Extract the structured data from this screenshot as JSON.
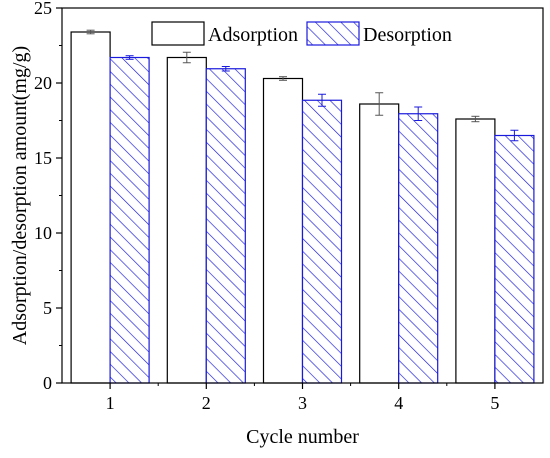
{
  "chart_data": {
    "type": "bar",
    "title": "",
    "xlabel": "Cycle number",
    "ylabel": "Adsorption/desorption amount(mg/g)",
    "categories": [
      "1",
      "2",
      "3",
      "4",
      "5"
    ],
    "ylim": [
      0,
      25
    ],
    "yticks": [
      "0",
      "5",
      "10",
      "15",
      "20",
      "25"
    ],
    "grid": false,
    "legend_position": "top",
    "series": [
      {
        "name": "Adsorption",
        "values": [
          23.4,
          21.7,
          20.3,
          18.6,
          17.6
        ],
        "errors": [
          0.12,
          0.35,
          0.12,
          0.75,
          0.18
        ],
        "fill": "#ffffff",
        "stroke": "#000000",
        "pattern": "none"
      },
      {
        "name": "Desorption",
        "values": [
          21.7,
          20.95,
          18.85,
          17.95,
          16.5
        ],
        "errors": [
          0.12,
          0.15,
          0.4,
          0.45,
          0.35
        ],
        "fill": "#ffffff",
        "stroke": "#1a1adc",
        "pattern": "diagonal-hatch"
      }
    ]
  }
}
